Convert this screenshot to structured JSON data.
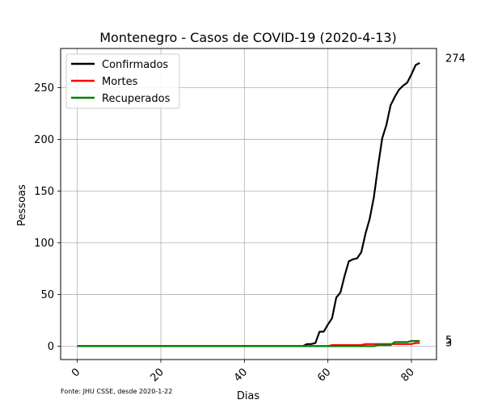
{
  "chart_data": {
    "type": "line",
    "title": "Montenegro - Casos de COVID-19 (2020-4-13)",
    "xlabel": "Dias",
    "ylabel": "Pessoas",
    "xlim": [
      -4,
      86
    ],
    "ylim": [
      -13,
      288
    ],
    "xticks": [
      0,
      20,
      40,
      60,
      80
    ],
    "yticks": [
      0,
      50,
      100,
      150,
      200,
      250
    ],
    "grid": true,
    "legend_position": "top-left",
    "source": "Fonte: JHU CSSE, desde 2020-1-22",
    "end_labels": [
      "274",
      "5",
      "3"
    ],
    "series": [
      {
        "name": "Confirmados",
        "color": "#000000",
        "points": [
          [
            0,
            0
          ],
          [
            53,
            0
          ],
          [
            54,
            0
          ],
          [
            55,
            2
          ],
          [
            56,
            2
          ],
          [
            57,
            3
          ],
          [
            58,
            14
          ],
          [
            59,
            14
          ],
          [
            60,
            21
          ],
          [
            61,
            27
          ],
          [
            62,
            47
          ],
          [
            63,
            52
          ],
          [
            64,
            68
          ],
          [
            65,
            82
          ],
          [
            66,
            84
          ],
          [
            67,
            85
          ],
          [
            68,
            91
          ],
          [
            69,
            109
          ],
          [
            70,
            123
          ],
          [
            71,
            144
          ],
          [
            72,
            174
          ],
          [
            73,
            201
          ],
          [
            74,
            214
          ],
          [
            75,
            233
          ],
          [
            76,
            241
          ],
          [
            77,
            248
          ],
          [
            78,
            252
          ],
          [
            79,
            255
          ],
          [
            80,
            263
          ],
          [
            81,
            272
          ],
          [
            82,
            274
          ]
        ]
      },
      {
        "name": "Mortes",
        "color": "#ff0000",
        "points": [
          [
            0,
            0
          ],
          [
            60,
            0
          ],
          [
            61,
            1
          ],
          [
            68,
            1
          ],
          [
            69,
            2
          ],
          [
            79,
            2
          ],
          [
            80,
            2
          ],
          [
            81,
            3
          ],
          [
            82,
            3
          ]
        ]
      },
      {
        "name": "Recuperados",
        "color": "#008000",
        "points": [
          [
            0,
            0
          ],
          [
            71,
            0
          ],
          [
            72,
            1
          ],
          [
            75,
            1
          ],
          [
            76,
            4
          ],
          [
            79,
            4
          ],
          [
            80,
            5
          ],
          [
            82,
            5
          ]
        ]
      }
    ]
  }
}
